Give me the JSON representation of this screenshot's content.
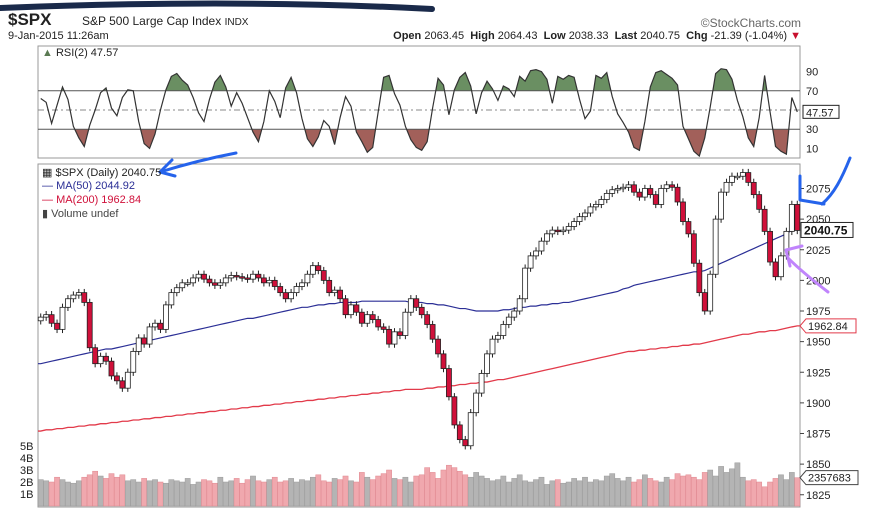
{
  "header": {
    "symbol": "$SPX",
    "name": "S&P 500 Large Cap Index",
    "exchange": "INDX",
    "brand": "©StockCharts.com",
    "datetime": "9-Jan-2015 11:26am",
    "open_label": "Open",
    "open": "2063.45",
    "high_label": "High",
    "high": "2064.43",
    "low_label": "Low",
    "low": "2038.33",
    "last_label": "Last",
    "last": "2040.75",
    "chg_label": "Chg",
    "chg": "-21.39 (-1.04%)"
  },
  "colors": {
    "up": "#ffffff",
    "down": "#d0103a",
    "ma50": "#2b2f96",
    "ma200": "#e23a4a",
    "rsi_high_fill": "#6a8f62",
    "rsi_low_fill": "#a2605a",
    "vol_up": "#b4b4b4",
    "vol_down": "#f0a8ae",
    "annot_blue": "#2563eb",
    "annot_purple": "#c084fc"
  },
  "rsi_panel": {
    "label": "RSI(2) 47.57",
    "ticks": [
      "90",
      "70",
      "50",
      "30",
      "10"
    ],
    "tick_values": [
      90,
      70,
      50,
      30,
      10
    ],
    "current": "47.57"
  },
  "price_panel": {
    "legend_main": "$SPX (Daily) 2040.75",
    "legend_ma50": "MA(50) 2044.92",
    "legend_ma200": "MA(200) 1962.84",
    "legend_volume": "Volume undef",
    "tick_labels": [
      "2075",
      "2050",
      "2025",
      "2000",
      "1975",
      "1950",
      "1925",
      "1900",
      "1875",
      "1850",
      "1825"
    ],
    "last_price_tag": "2040.75",
    "ma200_tag": "1962.84",
    "volume_tag": "2357683",
    "volume_labels": [
      "5B",
      "4B",
      "3B",
      "2B",
      "1B"
    ]
  },
  "chart_data": {
    "type": "candlestick",
    "title": "$SPX S&P 500 Large Cap Index INDX",
    "y_range": [
      1815,
      2095
    ],
    "rsi_range": [
      0,
      100
    ],
    "rsi": [
      62,
      58,
      36,
      55,
      74,
      61,
      33,
      21,
      12,
      34,
      50,
      68,
      73,
      52,
      44,
      63,
      71,
      70,
      38,
      15,
      10,
      25,
      50,
      71,
      85,
      88,
      81,
      76,
      63,
      47,
      38,
      61,
      79,
      86,
      74,
      54,
      68,
      57,
      42,
      27,
      17,
      38,
      70,
      59,
      42,
      73,
      84,
      68,
      41,
      20,
      12,
      22,
      39,
      33,
      14,
      42,
      64,
      54,
      27,
      17,
      6,
      11,
      48,
      84,
      86,
      67,
      55,
      33,
      19,
      11,
      8,
      17,
      52,
      83,
      76,
      45,
      71,
      84,
      89,
      75,
      46,
      68,
      80,
      72,
      60,
      75,
      72,
      64,
      85,
      80,
      91,
      92,
      90,
      82,
      57,
      85,
      82,
      86,
      84,
      61,
      41,
      49,
      86,
      83,
      89,
      64,
      46,
      37,
      27,
      11,
      8,
      38,
      74,
      89,
      91,
      87,
      83,
      76,
      33,
      20,
      7,
      2,
      21,
      53,
      88,
      93,
      92,
      82,
      60,
      43,
      21,
      12,
      42,
      86,
      48,
      12,
      7,
      4,
      63,
      48
    ],
    "close": [
      1970,
      1972,
      1965,
      1960,
      1978,
      1985,
      1988,
      1990,
      1982,
      1945,
      1932,
      1938,
      1934,
      1922,
      1918,
      1912,
      1925,
      1942,
      1953,
      1948,
      1962,
      1965,
      1960,
      1980,
      1990,
      1994,
      1998,
      1998,
      2002,
      2005,
      2001,
      1998,
      1996,
      1998,
      2002,
      2004,
      2003,
      2002,
      2001,
      2005,
      2002,
      1998,
      2000,
      1995,
      1990,
      1985,
      1990,
      1995,
      1998,
      2005,
      2012,
      2008,
      2000,
      1990,
      1992,
      1985,
      1972,
      1980,
      1974,
      1965,
      1972,
      1968,
      1962,
      1960,
      1948,
      1958,
      1955,
      1974,
      1985,
      1978,
      1972,
      1964,
      1952,
      1940,
      1928,
      1905,
      1882,
      1870,
      1865,
      1892,
      1908,
      1924,
      1940,
      1952,
      1955,
      1964,
      1970,
      1975,
      1985,
      2010,
      2020,
      2024,
      2032,
      2038,
      2041,
      2040,
      2041,
      2044,
      2048,
      2052,
      2055,
      2060,
      2062,
      2066,
      2071,
      2074,
      2075,
      2076,
      2078,
      2072,
      2068,
      2075,
      2070,
      2062,
      2075,
      2078,
      2076,
      2064,
      2048,
      2038,
      2014,
      1990,
      1975,
      2005,
      2050,
      2072,
      2080,
      2085,
      2085,
      2088,
      2080,
      2070,
      2058,
      2040,
      2015,
      2003,
      2020,
      2040,
      2062,
      2040.75
    ],
    "ma50": [
      1932,
      1933,
      1934,
      1935,
      1936,
      1937,
      1938,
      1939,
      1940,
      1941,
      1942,
      1943,
      1944,
      1944,
      1945,
      1946,
      1947,
      1948,
      1949,
      1950,
      1951,
      1952,
      1953,
      1954,
      1955,
      1956,
      1957,
      1958,
      1959,
      1960,
      1961,
      1962,
      1963,
      1964,
      1965,
      1966,
      1967,
      1968,
      1969,
      1969,
      1970,
      1971,
      1972,
      1973,
      1974,
      1975,
      1976,
      1977,
      1978,
      1978,
      1979,
      1980,
      1980,
      1981,
      1981,
      1982,
      1982,
      1982,
      1982,
      1983,
      1983,
      1983,
      1983,
      1983,
      1983,
      1983,
      1983,
      1983,
      1982,
      1982,
      1982,
      1981,
      1981,
      1980,
      1980,
      1979,
      1978,
      1977,
      1977,
      1976,
      1975,
      1975,
      1975,
      1975,
      1975,
      1976,
      1976,
      1977,
      1978,
      1978,
      1979,
      1979,
      1980,
      1980,
      1981,
      1981,
      1982,
      1982,
      1983,
      1984,
      1985,
      1986,
      1987,
      1988,
      1989,
      1990,
      1991,
      1993,
      1994,
      1996,
      1997,
      1998,
      1999,
      2000,
      2001,
      2002,
      2003,
      2004,
      2005,
      2006,
      2007,
      2007,
      2008,
      2010,
      2012,
      2014,
      2016,
      2018,
      2020,
      2022,
      2024,
      2026,
      2028,
      2030,
      2032,
      2034,
      2036,
      2038,
      2041,
      2044.92
    ],
    "ma200": [
      1877,
      1878,
      1878,
      1879,
      1879,
      1880,
      1880,
      1881,
      1881,
      1882,
      1882,
      1883,
      1883,
      1884,
      1884,
      1885,
      1885,
      1886,
      1886,
      1887,
      1887,
      1888,
      1888,
      1889,
      1889,
      1890,
      1890,
      1891,
      1891,
      1892,
      1892,
      1893,
      1893,
      1894,
      1894,
      1895,
      1895,
      1896,
      1896,
      1897,
      1897,
      1898,
      1898,
      1899,
      1899,
      1900,
      1900,
      1901,
      1901,
      1902,
      1902,
      1903,
      1903,
      1904,
      1904,
      1905,
      1905,
      1906,
      1906,
      1907,
      1907,
      1908,
      1908,
      1909,
      1909,
      1910,
      1910,
      1911,
      1911,
      1911,
      1911,
      1912,
      1912,
      1913,
      1913,
      1914,
      1914,
      1915,
      1915,
      1916,
      1916,
      1917,
      1917,
      1918,
      1919,
      1919,
      1920,
      1921,
      1922,
      1923,
      1924,
      1925,
      1926,
      1927,
      1928,
      1929,
      1930,
      1931,
      1932,
      1933,
      1934,
      1935,
      1936,
      1937,
      1938,
      1939,
      1940,
      1941,
      1942,
      1942,
      1943,
      1943,
      1944,
      1944,
      1945,
      1945,
      1946,
      1946,
      1947,
      1947,
      1948,
      1948,
      1949,
      1950,
      1951,
      1952,
      1953,
      1954,
      1955,
      1956,
      1956,
      1957,
      1958,
      1958,
      1959,
      1959,
      1960,
      1961,
      1962,
      1962.84
    ],
    "volume_b": [
      2.2,
      2.1,
      2.0,
      2.4,
      2.2,
      2.0,
      1.9,
      2.1,
      2.4,
      2.6,
      2.9,
      2.5,
      2.3,
      2.7,
      2.4,
      2.6,
      2.1,
      2.2,
      2.0,
      2.3,
      2.1,
      2.2,
      2.0,
      1.9,
      2.2,
      2.1,
      2.0,
      2.3,
      1.8,
      2.0,
      2.2,
      2.1,
      1.9,
      2.4,
      2.0,
      2.1,
      2.3,
      1.9,
      2.2,
      2.5,
      2.1,
      2.0,
      2.2,
      2.4,
      2.0,
      2.1,
      2.3,
      2.0,
      2.2,
      2.1,
      2.4,
      2.6,
      2.1,
      2.0,
      2.3,
      2.2,
      2.5,
      2.1,
      2.0,
      2.8,
      2.4,
      2.2,
      2.5,
      2.7,
      3.0,
      2.3,
      2.2,
      2.4,
      2.0,
      2.5,
      2.6,
      3.2,
      2.8,
      2.3,
      3.0,
      3.4,
      3.2,
      2.9,
      2.6,
      2.4,
      2.8,
      2.5,
      2.3,
      2.1,
      2.2,
      2.5,
      2.0,
      2.3,
      2.6,
      2.1,
      2.0,
      2.2,
      2.4,
      1.8,
      2.1,
      2.2,
      1.9,
      2.0,
      2.3,
      2.1,
      2.4,
      2.0,
      2.2,
      2.1,
      2.5,
      2.7,
      2.3,
      2.1,
      2.4,
      2.0,
      2.2,
      2.6,
      2.3,
      2.1,
      2.0,
      2.4,
      2.2,
      2.7,
      2.5,
      2.6,
      2.4,
      2.2,
      2.8,
      3.0,
      2.5,
      3.3,
      2.8,
      3.1,
      3.6,
      2.4,
      2.1,
      2.2,
      2.0,
      1.6,
      2.0,
      2.3,
      2.6,
      2.2,
      2.8,
      2.36
    ]
  }
}
